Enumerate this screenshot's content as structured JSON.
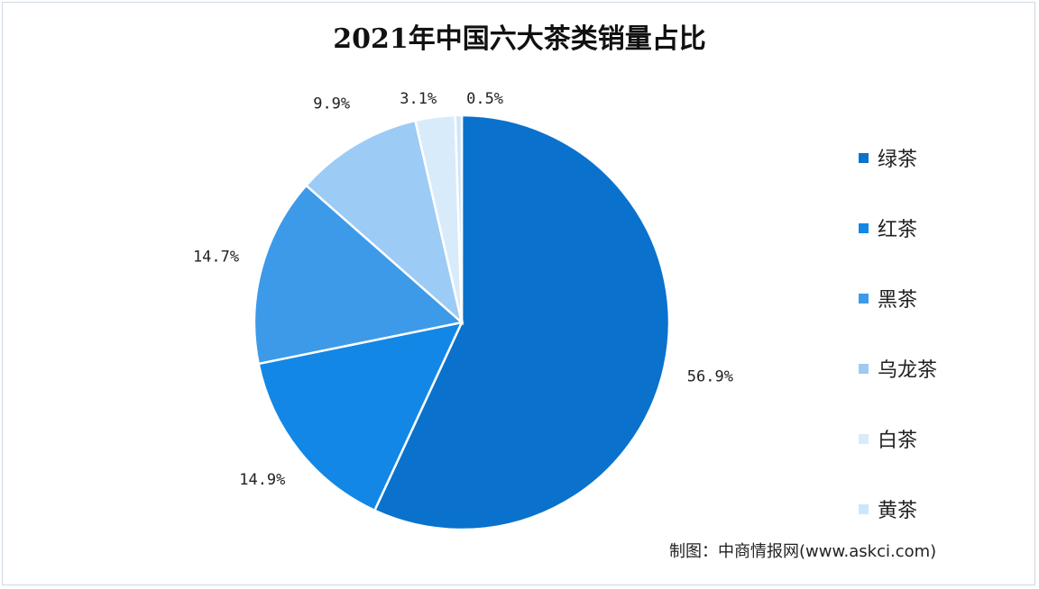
{
  "chart_data": {
    "type": "pie",
    "title": "2021年中国六大茶类销量占比",
    "categories": [
      "绿茶",
      "红茶",
      "黑茶",
      "乌龙茶",
      "白茶",
      "黄茶"
    ],
    "values": [
      56.9,
      14.9,
      14.7,
      9.9,
      3.1,
      0.5
    ],
    "value_labels": [
      "56.9%",
      "14.9%",
      "14.7%",
      "9.9%",
      "3.1%",
      "0.5%"
    ],
    "colors": [
      "#0a72cc",
      "#1387e6",
      "#3d9ae8",
      "#9ccbf5",
      "#d8ebfb",
      "#cde6fa"
    ],
    "legend_position": "right",
    "start": "top",
    "direction": "clockwise"
  },
  "source": "制图：中商情报网(www.askci.com)"
}
